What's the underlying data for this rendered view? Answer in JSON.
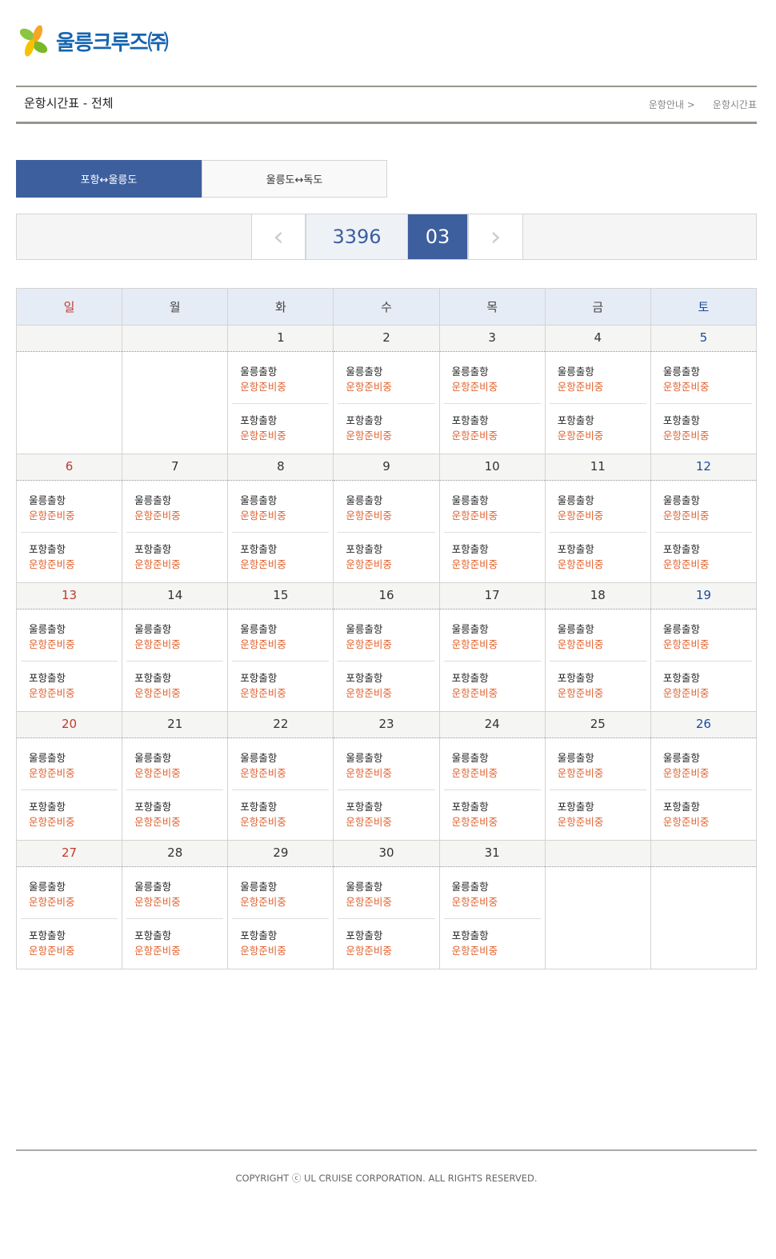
{
  "header": {
    "logo_text": "울릉크루즈㈜",
    "page_title": "운항시간표 - 전체",
    "breadcrumb": [
      "운항안내 >",
      "운항시간표"
    ]
  },
  "tabs": [
    {
      "label": "포항↔울릉도",
      "active": true
    },
    {
      "label": "울릉도↔독도",
      "active": false
    }
  ],
  "nav": {
    "prev": "‹",
    "year": "3396",
    "month": "03",
    "next": "›"
  },
  "calendar": {
    "weekdays": [
      "일",
      "월",
      "화",
      "수",
      "목",
      "금",
      "토"
    ],
    "colors": {
      "sunday": "#c0392b",
      "saturday": "#1a4c9c",
      "status": "#e0622e",
      "accent": "#3d5f9e"
    },
    "weeks": [
      [
        "",
        "",
        "1",
        "2",
        "3",
        "4",
        "5"
      ],
      [
        "6",
        "7",
        "8",
        "9",
        "10",
        "11",
        "12"
      ],
      [
        "13",
        "14",
        "15",
        "16",
        "17",
        "18",
        "19"
      ],
      [
        "20",
        "21",
        "22",
        "23",
        "24",
        "25",
        "26"
      ],
      [
        "27",
        "28",
        "29",
        "30",
        "31",
        "",
        ""
      ]
    ],
    "trips": [
      {
        "route": "울릉출항",
        "status": "운항준비중"
      },
      {
        "route": "포항출항",
        "status": "운항준비중"
      }
    ]
  },
  "footer": {
    "copyright": "COPYRIGHT ⓒ UL CRUISE CORPORATION. ALL RIGHTS RESERVED."
  }
}
